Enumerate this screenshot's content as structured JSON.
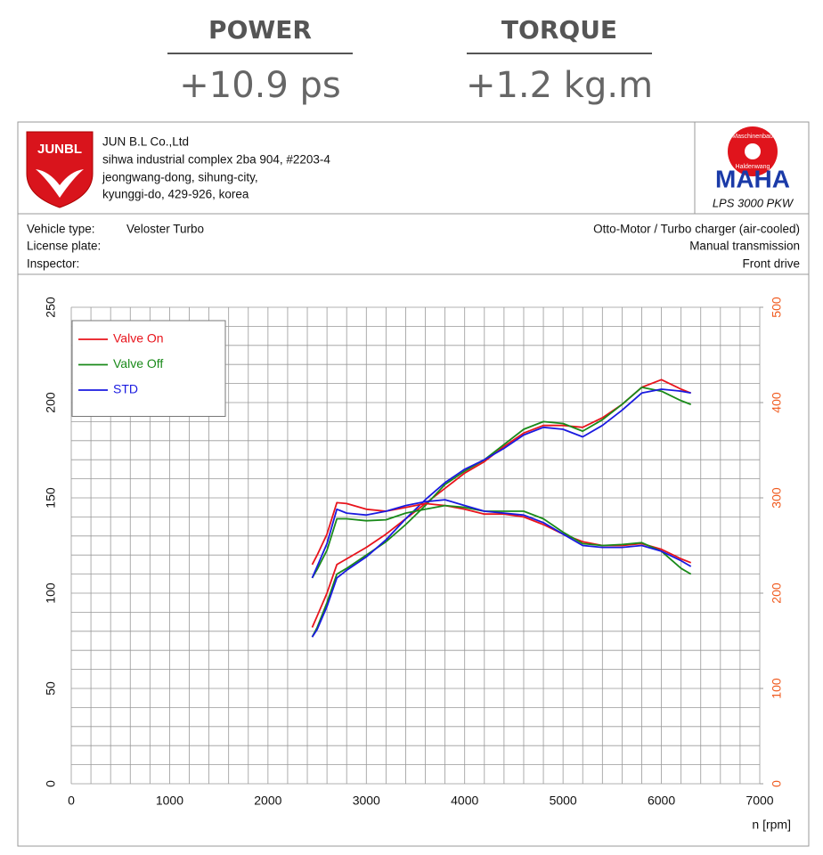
{
  "header": {
    "stats": [
      {
        "label": "POWER",
        "value": "+10.9 ps"
      },
      {
        "label": "TORQUE",
        "value": "+1.2 kg.m"
      }
    ],
    "logo": "JUNBL",
    "company": [
      "JUN B.L Co.,Ltd",
      "sihwa industrial complex 2ba 904, #2203-4",
      "jeongwang-dong, sihung-city,",
      "kyunggi-do, 429-926, korea"
    ],
    "maha": {
      "ring_top": "Maschinenbau",
      "ring_bottom": "Haldenwang",
      "name": "MAHA",
      "model": "LPS 3000 PKW"
    },
    "vehicle_left": [
      [
        "Vehicle type:",
        "Veloster Turbo"
      ],
      [
        "License plate:"
      ],
      [
        "Inspector:"
      ]
    ],
    "vehicle_right": [
      "Otto-Motor / Turbo charger (air-cooled)",
      "Manual transmission",
      "Front drive"
    ]
  },
  "chart_data": {
    "type": "line",
    "x_label": "n [rpm]",
    "x": [
      2450,
      2500,
      2600,
      2700,
      2800,
      3000,
      3200,
      3400,
      3600,
      3800,
      4000,
      4200,
      4400,
      4600,
      4800,
      5000,
      5200,
      5400,
      5600,
      5800,
      6000,
      6200,
      6300
    ],
    "series": [
      {
        "name": "Valve On",
        "color": "#e8141c",
        "values": [
          82,
          88,
          100,
          115,
          118,
          124,
          131,
          139,
          147,
          155,
          163,
          169,
          177,
          184,
          188,
          188,
          187,
          192,
          199,
          208,
          212,
          207,
          205
        ]
      },
      {
        "name": "Valve Off",
        "color": "#1a8a1a",
        "values": [
          77,
          82,
          95,
          110,
          113,
          120,
          127,
          136,
          146,
          157,
          164,
          170,
          178,
          186,
          190,
          189,
          185,
          191,
          199,
          208,
          206,
          201,
          199
        ]
      },
      {
        "name": "STD",
        "color": "#1a1ae0",
        "values": [
          77,
          81,
          93,
          108,
          112,
          119,
          128,
          139,
          149,
          158,
          165,
          170,
          176,
          183,
          187,
          186,
          182,
          188,
          196,
          205,
          207,
          206,
          205
        ]
      },
      {
        "color": "#e8141c",
        "axis": "y2",
        "values": [
          230,
          240,
          262,
          295,
          294,
          288,
          286,
          290,
          294,
          292,
          288,
          283,
          283,
          280,
          272,
          262,
          254,
          250,
          250,
          252,
          246,
          236,
          232
        ]
      },
      {
        "color": "#1a8a1a",
        "axis": "y2",
        "values": [
          216,
          225,
          245,
          278,
          278,
          276,
          277,
          284,
          288,
          292,
          290,
          286,
          286,
          286,
          278,
          264,
          252,
          250,
          251,
          253,
          244,
          226,
          220
        ]
      },
      {
        "color": "#1a1ae0",
        "axis": "y2",
        "values": [
          216,
          228,
          252,
          288,
          284,
          282,
          286,
          292,
          296,
          298,
          292,
          286,
          284,
          282,
          274,
          262,
          250,
          248,
          248,
          250,
          244,
          234,
          228
        ]
      }
    ],
    "xlim": [
      0,
      7000
    ],
    "xticks": [
      0,
      1000,
      2000,
      3000,
      4000,
      5000,
      6000,
      7000
    ],
    "ylim": [
      0,
      250
    ],
    "yticks": [
      0,
      50,
      100,
      150,
      200,
      250
    ],
    "y2lim": [
      0,
      500
    ],
    "y2ticks": [
      0,
      100,
      200,
      300,
      400,
      500
    ],
    "y2color": "#f05a1e",
    "grid": true,
    "legend": "upper left"
  }
}
